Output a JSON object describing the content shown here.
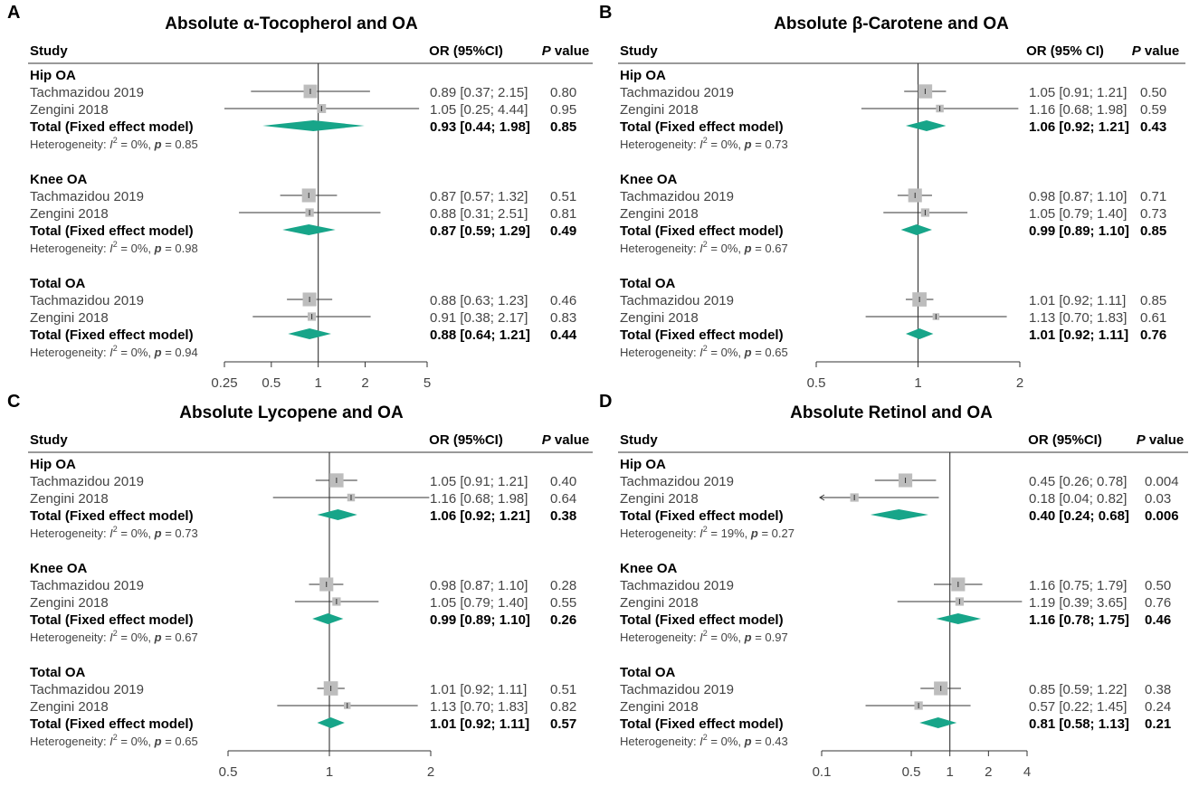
{
  "colors": {
    "diamond": "#17a589",
    "square": "#bdbdbd",
    "line": "#333333",
    "text": "#000000",
    "muted": "#444444"
  },
  "common": {
    "study_label": "Study",
    "p_label_italic": "P",
    "p_label_rest": " value",
    "heterogeneity_prefix": "Heterogeneity: ",
    "i2_label": "I",
    "i2_sup": "2",
    "p_italic": "p"
  },
  "chart_data": [
    {
      "panel_letter": "A",
      "type": "forest",
      "title": "Absolute α-Tocopherol and OA",
      "or_header": "OR (95%CI)",
      "scale": "log",
      "xlim": [
        0.25,
        5
      ],
      "ticks": [
        0.25,
        0.5,
        1,
        2,
        5
      ],
      "tick_labels": [
        "0.25",
        "0.5",
        "1",
        "2",
        "5"
      ],
      "null_value": 1,
      "groups": [
        {
          "name": "Hip OA",
          "studies": [
            {
              "study": "Tachmazidou 2019",
              "or": 0.89,
              "lo": 0.37,
              "hi": 2.15,
              "or_text": "0.89 [0.37; 2.15]",
              "p": "0.80",
              "weight": 0.8
            },
            {
              "study": "Zengini 2018",
              "or": 1.05,
              "lo": 0.25,
              "hi": 4.44,
              "or_text": "1.05 [0.25; 4.44]",
              "p": "0.95",
              "weight": 0.2
            }
          ],
          "total": {
            "label": "Total (Fixed effect model)",
            "or": 0.93,
            "lo": 0.44,
            "hi": 1.98,
            "or_text": "0.93 [0.44; 1.98]",
            "p": "0.85"
          },
          "heterogeneity": {
            "i2": " = 0%, ",
            "p": " = 0.85"
          }
        },
        {
          "name": "Knee OA",
          "studies": [
            {
              "study": "Tachmazidou 2019",
              "or": 0.87,
              "lo": 0.57,
              "hi": 1.32,
              "or_text": "0.87 [0.57; 1.32]",
              "p": "0.51",
              "weight": 0.85
            },
            {
              "study": "Zengini 2018",
              "or": 0.88,
              "lo": 0.31,
              "hi": 2.51,
              "or_text": "0.88 [0.31; 2.51]",
              "p": "0.81",
              "weight": 0.15
            }
          ],
          "total": {
            "label": "Total (Fixed effect model)",
            "or": 0.87,
            "lo": 0.59,
            "hi": 1.29,
            "or_text": "0.87 [0.59; 1.29]",
            "p": "0.49"
          },
          "heterogeneity": {
            "i2": " = 0%, ",
            "p": " = 0.98"
          }
        },
        {
          "name": "Total OA",
          "studies": [
            {
              "study": "Tachmazidou 2019",
              "or": 0.88,
              "lo": 0.63,
              "hi": 1.23,
              "or_text": "0.88 [0.63; 1.23]",
              "p": "0.46",
              "weight": 0.85
            },
            {
              "study": "Zengini 2018",
              "or": 0.91,
              "lo": 0.38,
              "hi": 2.17,
              "or_text": "0.91 [0.38; 2.17]",
              "p": "0.83",
              "weight": 0.15
            }
          ],
          "total": {
            "label": "Total (Fixed effect model)",
            "or": 0.88,
            "lo": 0.64,
            "hi": 1.21,
            "or_text": "0.88 [0.64; 1.21]",
            "p": "0.44"
          },
          "heterogeneity": {
            "i2": " = 0%, ",
            "p": " = 0.94"
          }
        }
      ]
    },
    {
      "panel_letter": "B",
      "type": "forest",
      "title": "Absolute β-Carotene and OA",
      "or_header": "OR (95% CI)",
      "scale": "log",
      "xlim": [
        0.5,
        2
      ],
      "ticks": [
        0.5,
        1,
        2
      ],
      "tick_labels": [
        "0.5",
        "1",
        "2"
      ],
      "null_value": 1,
      "groups": [
        {
          "name": "Hip OA",
          "studies": [
            {
              "study": "Tachmazidou 2019",
              "or": 1.05,
              "lo": 0.91,
              "hi": 1.21,
              "or_text": "1.05 [0.91; 1.21]",
              "p": "0.50",
              "weight": 0.9
            },
            {
              "study": "Zengini 2018",
              "or": 1.16,
              "lo": 0.68,
              "hi": 1.98,
              "or_text": "1.16 [0.68; 1.98]",
              "p": "0.59",
              "weight": 0.1
            }
          ],
          "total": {
            "label": "Total (Fixed effect model)",
            "or": 1.06,
            "lo": 0.92,
            "hi": 1.21,
            "or_text": "1.06 [0.92; 1.21]",
            "p": "0.43"
          },
          "heterogeneity": {
            "i2": " = 0%, ",
            "p": " = 0.73"
          }
        },
        {
          "name": "Knee OA",
          "studies": [
            {
              "study": "Tachmazidou 2019",
              "or": 0.98,
              "lo": 0.87,
              "hi": 1.1,
              "or_text": "0.98 [0.87; 1.10]",
              "p": "0.71",
              "weight": 0.85
            },
            {
              "study": "Zengini 2018",
              "or": 1.05,
              "lo": 0.79,
              "hi": 1.4,
              "or_text": "1.05 [0.79; 1.40]",
              "p": "0.73",
              "weight": 0.15
            }
          ],
          "total": {
            "label": "Total (Fixed effect model)",
            "or": 0.99,
            "lo": 0.89,
            "hi": 1.1,
            "or_text": "0.99 [0.89; 1.10]",
            "p": "0.85"
          },
          "heterogeneity": {
            "i2": " = 0%, ",
            "p": " = 0.67"
          }
        },
        {
          "name": "Total OA",
          "studies": [
            {
              "study": "Tachmazidou 2019",
              "or": 1.01,
              "lo": 0.92,
              "hi": 1.11,
              "or_text": "1.01 [0.92; 1.11]",
              "p": "0.85",
              "weight": 0.95
            },
            {
              "study": "Zengini 2018",
              "or": 1.13,
              "lo": 0.7,
              "hi": 1.83,
              "or_text": "1.13 [0.70; 1.83]",
              "p": "0.61",
              "weight": 0.05
            }
          ],
          "total": {
            "label": "Total (Fixed effect model)",
            "or": 1.01,
            "lo": 0.92,
            "hi": 1.11,
            "or_text": "1.01 [0.92; 1.11]",
            "p": "0.76"
          },
          "heterogeneity": {
            "i2": " = 0%, ",
            "p": " = 0.65"
          }
        }
      ]
    },
    {
      "panel_letter": "C",
      "type": "forest",
      "title": "Absolute Lycopene and OA",
      "or_header": "OR (95%CI)",
      "scale": "log",
      "xlim": [
        0.5,
        2
      ],
      "ticks": [
        0.5,
        1,
        2
      ],
      "tick_labels": [
        "0.5",
        "1",
        "2"
      ],
      "null_value": 1,
      "groups": [
        {
          "name": "Hip OA",
          "studies": [
            {
              "study": "Tachmazidou 2019",
              "or": 1.05,
              "lo": 0.91,
              "hi": 1.21,
              "or_text": "1.05 [0.91; 1.21]",
              "p": "0.40",
              "weight": 0.9
            },
            {
              "study": "Zengini 2018",
              "or": 1.16,
              "lo": 0.68,
              "hi": 1.98,
              "or_text": "1.16 [0.68; 1.98]",
              "p": "0.64",
              "weight": 0.1
            }
          ],
          "total": {
            "label": "Total (Fixed effect model)",
            "or": 1.06,
            "lo": 0.92,
            "hi": 1.21,
            "or_text": "1.06 [0.92; 1.21]",
            "p": "0.38"
          },
          "heterogeneity": {
            "i2": " = 0%, ",
            "p": " = 0.73"
          }
        },
        {
          "name": "Knee OA",
          "studies": [
            {
              "study": "Tachmazidou 2019",
              "or": 0.98,
              "lo": 0.87,
              "hi": 1.1,
              "or_text": "0.98 [0.87; 1.10]",
              "p": "0.28",
              "weight": 0.85
            },
            {
              "study": "Zengini 2018",
              "or": 1.05,
              "lo": 0.79,
              "hi": 1.4,
              "or_text": "1.05 [0.79; 1.40]",
              "p": "0.55",
              "weight": 0.15
            }
          ],
          "total": {
            "label": "Total (Fixed effect model)",
            "or": 0.99,
            "lo": 0.89,
            "hi": 1.1,
            "or_text": "0.99 [0.89; 1.10]",
            "p": "0.26"
          },
          "heterogeneity": {
            "i2": " = 0%, ",
            "p": " = 0.67"
          }
        },
        {
          "name": "Total OA",
          "studies": [
            {
              "study": "Tachmazidou 2019",
              "or": 1.01,
              "lo": 0.92,
              "hi": 1.11,
              "or_text": "1.01 [0.92; 1.11]",
              "p": "0.51",
              "weight": 0.95
            },
            {
              "study": "Zengini 2018",
              "or": 1.13,
              "lo": 0.7,
              "hi": 1.83,
              "or_text": "1.13 [0.70; 1.83]",
              "p": "0.82",
              "weight": 0.05
            }
          ],
          "total": {
            "label": "Total (Fixed effect model)",
            "or": 1.01,
            "lo": 0.92,
            "hi": 1.11,
            "or_text": "1.01 [0.92; 1.11]",
            "p": "0.57"
          },
          "heterogeneity": {
            "i2": " = 0%, ",
            "p": " = 0.65"
          }
        }
      ]
    },
    {
      "panel_letter": "D",
      "type": "forest",
      "title": "Absolute Retinol and OA",
      "or_header": "OR (95%CI)",
      "scale": "log",
      "xlim": [
        0.1,
        4
      ],
      "ticks": [
        0.1,
        0.5,
        1,
        2,
        4
      ],
      "tick_labels": [
        "0.1",
        "0.5",
        "1",
        "2",
        "4"
      ],
      "null_value": 1,
      "groups": [
        {
          "name": "Hip OA",
          "studies": [
            {
              "study": "Tachmazidou 2019",
              "or": 0.45,
              "lo": 0.26,
              "hi": 0.78,
              "or_text": "0.45 [0.26; 0.78]",
              "p": "0.004",
              "weight": 0.85
            },
            {
              "study": "Zengini 2018",
              "or": 0.18,
              "lo": 0.04,
              "hi": 0.82,
              "or_text": "0.18 [0.04; 0.82]",
              "p": "0.03",
              "weight": 0.15
            }
          ],
          "total": {
            "label": "Total (Fixed effect model)",
            "or": 0.4,
            "lo": 0.24,
            "hi": 0.68,
            "or_text": "0.40 [0.24; 0.68]",
            "p": "0.006"
          },
          "heterogeneity": {
            "i2": " = 19%, ",
            "p": " = 0.27"
          }
        },
        {
          "name": "Knee OA",
          "studies": [
            {
              "study": "Tachmazidou 2019",
              "or": 1.16,
              "lo": 0.75,
              "hi": 1.79,
              "or_text": "1.16 [0.75; 1.79]",
              "p": "0.50",
              "weight": 0.85
            },
            {
              "study": "Zengini 2018",
              "or": 1.19,
              "lo": 0.39,
              "hi": 3.65,
              "or_text": "1.19 [0.39; 3.65]",
              "p": "0.76",
              "weight": 0.15
            }
          ],
          "total": {
            "label": "Total (Fixed effect model)",
            "or": 1.16,
            "lo": 0.78,
            "hi": 1.75,
            "or_text": "1.16 [0.78; 1.75]",
            "p": "0.46"
          },
          "heterogeneity": {
            "i2": " = 0%, ",
            "p": " = 0.97"
          }
        },
        {
          "name": "Total OA",
          "studies": [
            {
              "study": "Tachmazidou 2019",
              "or": 0.85,
              "lo": 0.59,
              "hi": 1.22,
              "or_text": "0.85 [0.59; 1.22]",
              "p": "0.38",
              "weight": 0.85
            },
            {
              "study": "Zengini 2018",
              "or": 0.57,
              "lo": 0.22,
              "hi": 1.45,
              "or_text": "0.57 [0.22; 1.45]",
              "p": "0.24",
              "weight": 0.15
            }
          ],
          "total": {
            "label": "Total (Fixed effect model)",
            "or": 0.81,
            "lo": 0.58,
            "hi": 1.13,
            "or_text": "0.81 [0.58; 1.13]",
            "p": "0.21"
          },
          "heterogeneity": {
            "i2": " = 0%, ",
            "p": " = 0.43"
          }
        }
      ]
    }
  ]
}
